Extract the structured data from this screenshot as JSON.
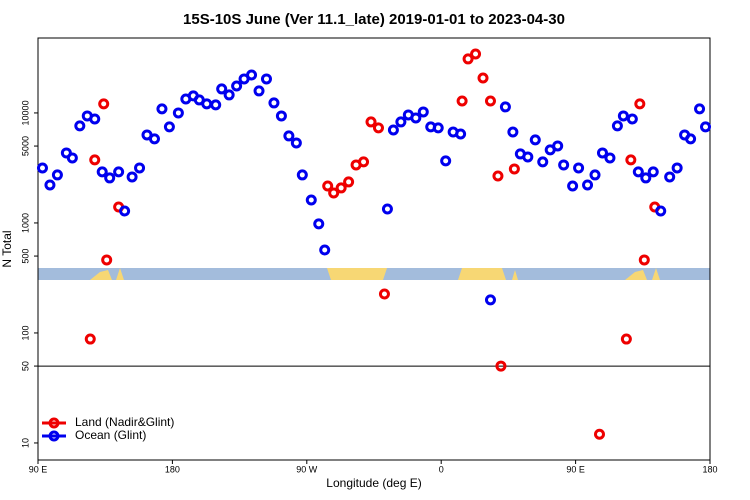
{
  "chart_data": {
    "type": "scatter",
    "title": "15S-10S June (Ver 11.1_late)   2019-01-01 to 2023-04-30",
    "x_label": "Longitude (deg E)",
    "y_label": "N Total",
    "xlim": [
      90,
      540
    ],
    "ylim": [
      7,
      48000
    ],
    "log_y": true,
    "hline": 50,
    "legend": "lower left",
    "xticks": [
      {
        "value": 90,
        "label": "90 E"
      },
      {
        "value": 180,
        "label": "180"
      },
      {
        "value": 270,
        "label": "90 W"
      },
      {
        "value": 360,
        "label": "0"
      },
      {
        "value": 450,
        "label": "90 E"
      },
      {
        "value": 540,
        "label": "180"
      }
    ],
    "yticks": [
      10,
      50,
      100,
      500,
      1000,
      5000,
      10000
    ],
    "series": [
      {
        "name": "Land (Nadir&Glint)",
        "color": "#ee0000",
        "x": [
          125,
          128,
          134,
          136,
          144,
          284,
          288,
          293,
          298,
          303,
          308,
          313,
          318,
          322,
          374,
          378,
          383,
          388,
          393,
          398,
          400,
          409,
          466,
          484,
          487,
          493,
          496,
          503
        ],
        "values": [
          88,
          3741,
          12080,
          461,
          1397,
          2169,
          1874,
          2081,
          2360,
          3367,
          3589,
          8286,
          7311,
          226,
          12850,
          30970,
          34360,
          20780,
          12850,
          2673,
          50,
          3097,
          12,
          88,
          3741,
          12080,
          461,
          1397
        ]
      },
      {
        "name": "Ocean (Glint)",
        "color": "#0000ee",
        "x": [
          93,
          98,
          103,
          109,
          113,
          118,
          123,
          128,
          133,
          138,
          144,
          148,
          153,
          158,
          163,
          168,
          173,
          178,
          184,
          189,
          194,
          198,
          203,
          209,
          213,
          218,
          223,
          228,
          233,
          238,
          243,
          248,
          253,
          258,
          263,
          267,
          273,
          278,
          282,
          324,
          328,
          333,
          338,
          343,
          348,
          353,
          358,
          363,
          368,
          373,
          393,
          403,
          408,
          413,
          418,
          423,
          428,
          433,
          438,
          442,
          448,
          452,
          458,
          463,
          468,
          473,
          478,
          482,
          488,
          492,
          497,
          502,
          507,
          513,
          518,
          523,
          527,
          533,
          537
        ],
        "values": [
          3160,
          2215,
          2732,
          4329,
          3899,
          7629,
          9392,
          8816,
          2912,
          2566,
          2912,
          1285,
          2619,
          3162,
          6310,
          5806,
          10880,
          7465,
          10000,
          13400,
          14280,
          13130,
          12080,
          11830,
          16530,
          14580,
          17580,
          20370,
          22140,
          15850,
          20370,
          12330,
          9392,
          6180,
          5337,
          2732,
          1617,
          980,
          568,
          1340,
          6997,
          8286,
          9590,
          9005,
          10210,
          7465,
          7311,
          3664,
          6713,
          6441,
          200,
          11340,
          6713,
          4240,
          3981,
          5689,
          3589,
          4613,
          5012,
          3367,
          2169,
          3162,
          2215,
          2732,
          4329,
          3899,
          7629,
          9392,
          8816,
          2912,
          2566,
          2912,
          1285,
          2619,
          3162,
          6310,
          5806,
          10880,
          7465
        ]
      }
    ]
  }
}
